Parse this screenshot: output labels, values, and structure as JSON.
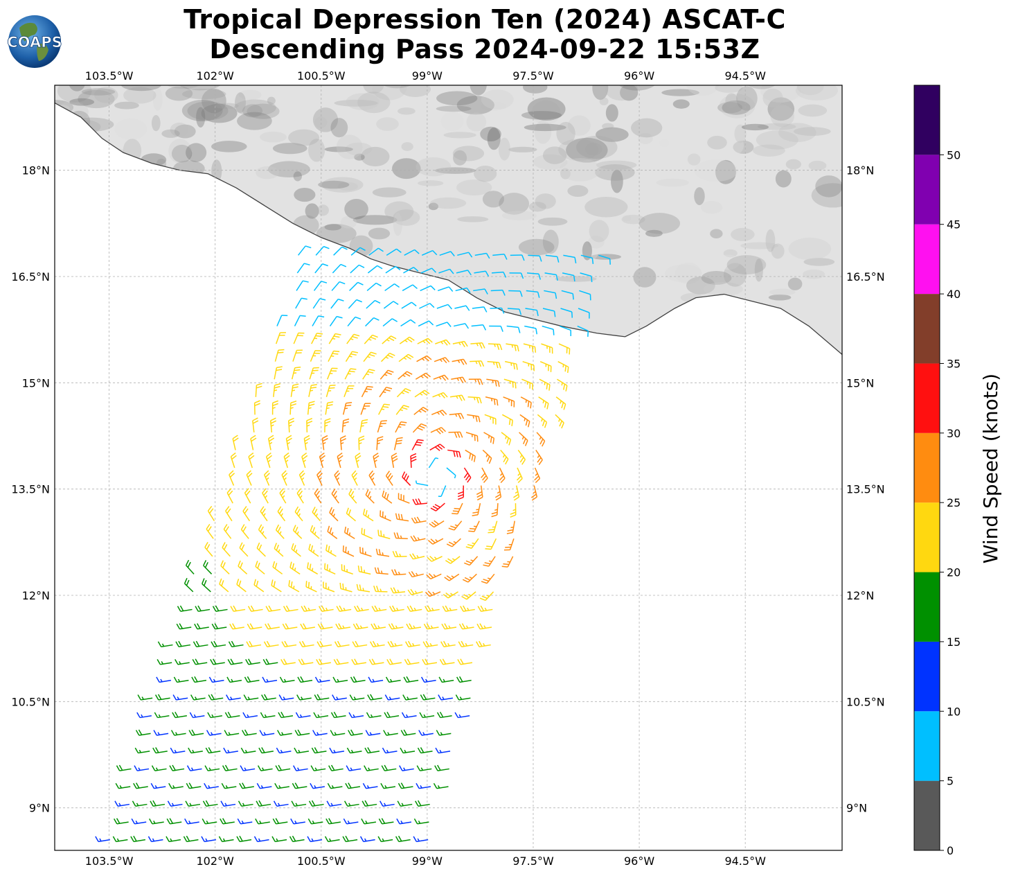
{
  "title": {
    "line1": "Tropical Depression Ten (2024) ASCAT-C",
    "line2": "Descending Pass 2024-09-22 15:53Z"
  },
  "logo": {
    "text": "COAPS",
    "icon": "globe-icon"
  },
  "map": {
    "lon_ticks": [
      {
        "value": -103.5,
        "label": "103.5°W"
      },
      {
        "value": -102,
        "label": "102°W"
      },
      {
        "value": -100.5,
        "label": "100.5°W"
      },
      {
        "value": -99,
        "label": "99°W"
      },
      {
        "value": -97.5,
        "label": "97.5°W"
      },
      {
        "value": -96,
        "label": "96°W"
      },
      {
        "value": -94.5,
        "label": "94.5°W"
      }
    ],
    "lat_ticks": [
      {
        "value": 18,
        "label": "18°N"
      },
      {
        "value": 16.5,
        "label": "16.5°N"
      },
      {
        "value": 15,
        "label": "15°N"
      },
      {
        "value": 13.5,
        "label": "13.5°N"
      },
      {
        "value": 12,
        "label": "12°N"
      },
      {
        "value": 10.5,
        "label": "10.5°N"
      },
      {
        "value": 9,
        "label": "9°N"
      }
    ],
    "extent": {
      "lon_min": -104.27,
      "lon_max": -93.13,
      "lat_min": 8.4,
      "lat_max": 19.2
    },
    "storm_center": {
      "lon": -98.9,
      "lat": 13.7
    },
    "land_color": "#e6e6e6",
    "coast_color": "#404040",
    "grid_style": "dashed gray"
  },
  "colorbar": {
    "label": "Wind Speed (knots)",
    "bins": [
      {
        "min": 0,
        "max": 5,
        "color": "#595959"
      },
      {
        "min": 5,
        "max": 10,
        "color": "#00bfff"
      },
      {
        "min": 10,
        "max": 15,
        "color": "#0033ff"
      },
      {
        "min": 15,
        "max": 20,
        "color": "#009000"
      },
      {
        "min": 20,
        "max": 25,
        "color": "#ffd810"
      },
      {
        "min": 25,
        "max": 30,
        "color": "#ff8c10"
      },
      {
        "min": 30,
        "max": 35,
        "color": "#ff1010"
      },
      {
        "min": 35,
        "max": 40,
        "color": "#823e2a"
      },
      {
        "min": 40,
        "max": 45,
        "color": "#ff10f0"
      },
      {
        "min": 45,
        "max": 50,
        "color": "#8000b0"
      },
      {
        "min": 50,
        "max": 55,
        "color": "#300060"
      }
    ],
    "tick_labels": [
      "0",
      "5",
      "10",
      "15",
      "20",
      "25",
      "30",
      "35",
      "40",
      "45",
      "50"
    ]
  }
}
